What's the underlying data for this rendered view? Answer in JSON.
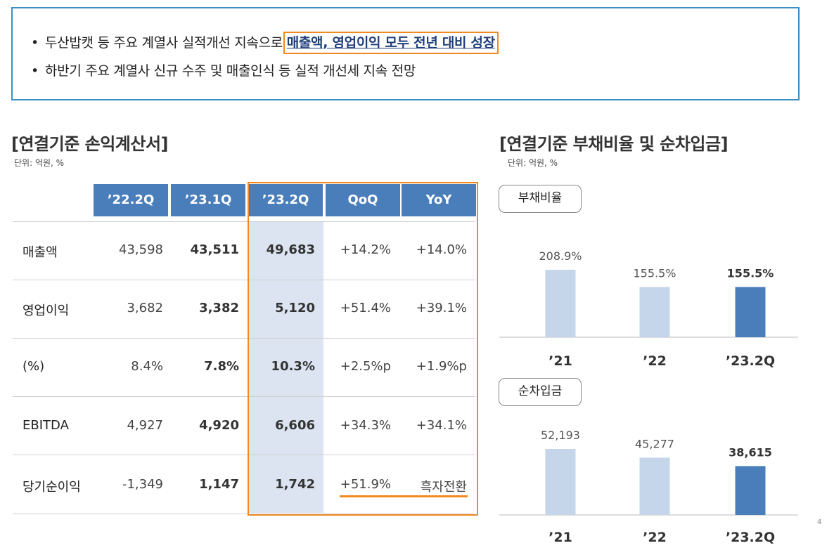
{
  "summary": {
    "bullets": [
      {
        "text": "두산밥캣 등 주요 계열사 실적개선 지속으로 ",
        "highlight": "매출액, 영업이익 모두 전년 대비 성장"
      },
      {
        "text": "하반기 주요 계열사 신규 수주 및 매출인식 등 실적 개선세 지속 전망",
        "highlight": ""
      }
    ]
  },
  "income": {
    "title": "[연결기준 손익계산서]",
    "unit": "단위: 억원, %",
    "headers": [
      "’22.2Q",
      "’23.1Q",
      "’23.2Q",
      "QoQ",
      "YoY"
    ],
    "rows": [
      {
        "label": "매출액",
        "values": [
          "43,598",
          "43,511",
          "49,683",
          "+14.2%",
          "+14.0%"
        ]
      },
      {
        "label": "영업이익",
        "values": [
          "3,682",
          "3,382",
          "5,120",
          "+51.4%",
          "+39.1%"
        ]
      },
      {
        "label": "(%)",
        "values": [
          "8.4%",
          "7.8%",
          "10.3%",
          "+2.5%p",
          "+1.9%p"
        ]
      },
      {
        "label": "EBITDA",
        "values": [
          "4,927",
          "4,920",
          "6,606",
          "+34.3%",
          "+34.1%"
        ]
      },
      {
        "label": "당기순이익",
        "values": [
          "-1,349",
          "1,147",
          "1,742",
          "+51.9%",
          "흑자전환"
        ]
      }
    ]
  },
  "debt": {
    "title": "[연결기준 부채비율 및 순차입금]",
    "unit": "단위: 억원, %"
  },
  "colors": {
    "bar_light": "#c5d5ea",
    "bar_dark": "#4a7ebb",
    "accent": "#f0891f",
    "header": "#4a7ebb"
  },
  "chart_data": [
    {
      "type": "bar",
      "title": "부채비율",
      "categories": [
        "’21",
        "’22",
        "’23.2Q"
      ],
      "values": [
        208.9,
        155.5,
        155.5
      ],
      "labels": [
        "208.9%",
        "155.5%",
        "155.5%"
      ]
    },
    {
      "type": "bar",
      "title": "순차입금",
      "categories": [
        "’21",
        "’22",
        "’23.2Q"
      ],
      "values": [
        52193,
        45277,
        38615
      ],
      "labels": [
        "52,193",
        "45,277",
        "38,615"
      ]
    }
  ],
  "page_number": "4"
}
